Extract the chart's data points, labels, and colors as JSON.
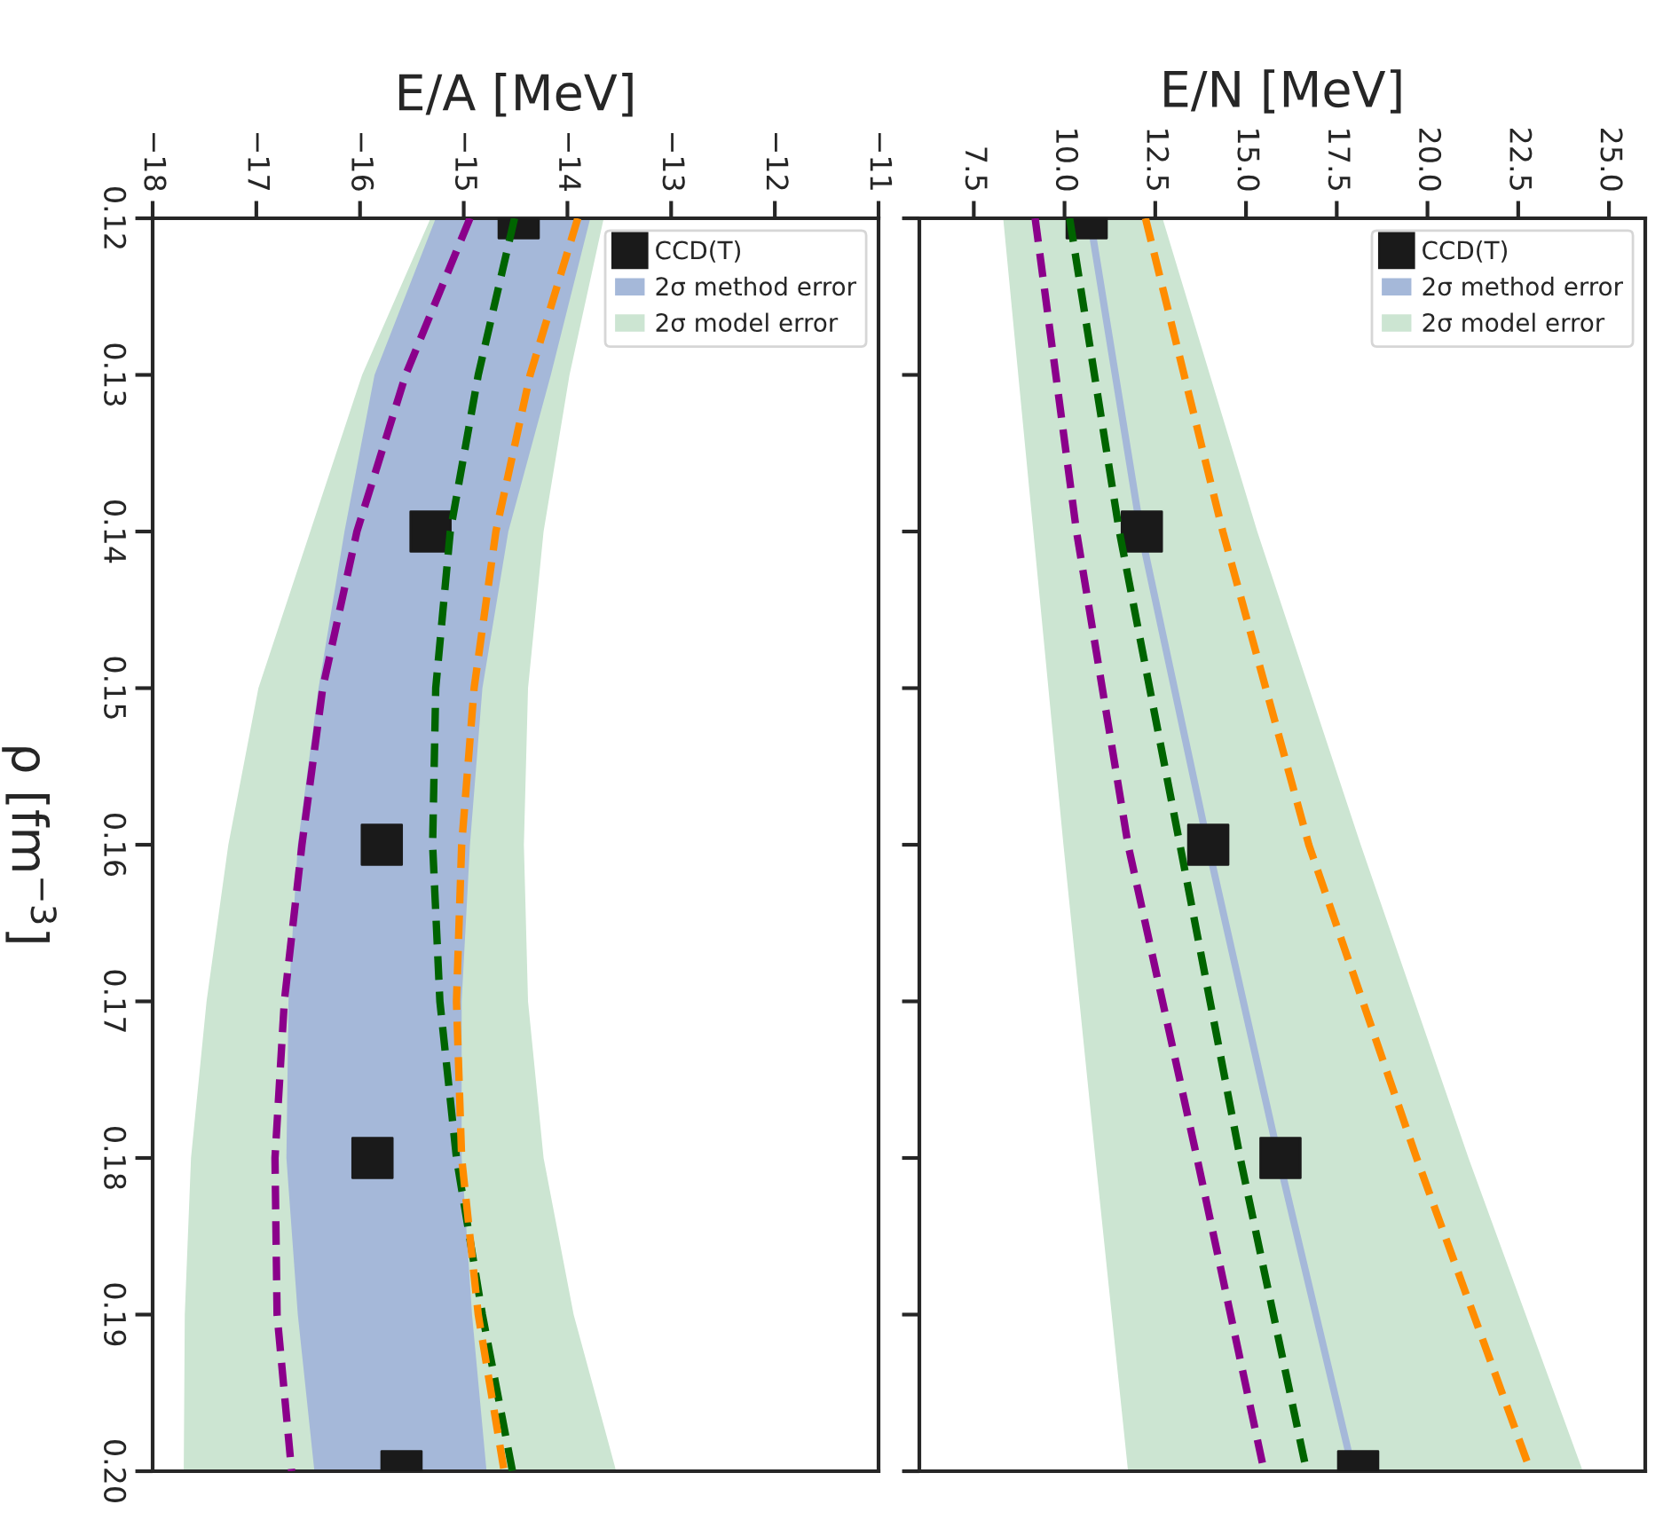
{
  "chart_data": [
    {
      "type": "line",
      "orientation": "horizontal",
      "xlabel": "E/A [MeV]",
      "ylabel": "ρ [fm$^{−3}$]",
      "ylim": [
        0.2,
        0.12
      ],
      "xlim": [
        -18,
        -11
      ],
      "yticks": [
        0.12,
        0.13,
        0.14,
        0.15,
        0.16,
        0.17,
        0.18,
        0.19,
        {
          "value": 0.2,
          "label": "0.20"
        }
      ],
      "xticks": [
        {
          "value": -18,
          "label": "−18"
        },
        {
          "value": -17,
          "label": "−17"
        },
        {
          "value": -16,
          "label": "−16"
        },
        {
          "value": -15,
          "label": "−15"
        },
        {
          "value": -14,
          "label": "−14"
        },
        {
          "value": -13,
          "label": "−13"
        },
        {
          "value": -12,
          "label": "−12"
        },
        {
          "value": -11,
          "label": "−11"
        }
      ],
      "x": [
        0.12,
        0.13,
        0.14,
        0.15,
        0.16,
        0.17,
        0.18,
        0.19,
        0.2
      ],
      "legend": "top right",
      "line_style": "dashed",
      "grid": false,
      "series": [
        {
          "name": "2σ model error",
          "type": "area",
          "color": "#cce5d2",
          "values": [
            null,
            null,
            null,
            null,
            null,
            null,
            null,
            null,
            null
          ],
          "lower": [
            -15.32,
            -15.98,
            -16.48,
            -16.98,
            -17.27,
            -17.48,
            -17.63,
            -17.69,
            -17.7
          ],
          "upper": [
            -13.65,
            -13.98,
            -14.23,
            -14.38,
            -14.42,
            -14.38,
            -14.23,
            -13.94,
            -13.53
          ]
        },
        {
          "name": "2σ method error",
          "type": "area",
          "color": "#a5b8d9",
          "values": [
            null,
            null,
            null,
            null,
            null,
            null,
            null,
            null,
            null
          ],
          "lower": [
            -15.27,
            -15.86,
            -16.15,
            -16.4,
            -16.6,
            -16.69,
            -16.71,
            -16.6,
            -16.44
          ],
          "upper": [
            -13.78,
            -14.16,
            -14.57,
            -14.82,
            -14.94,
            -15.02,
            -15.02,
            -14.92,
            -14.78
          ]
        },
        {
          "color": "#8b008b",
          "values": [
            -14.94,
            -15.56,
            -16.03,
            -16.36,
            -16.56,
            -16.73,
            -16.82,
            -16.8,
            -16.66
          ]
        },
        {
          "color": "#006400",
          "values": [
            -14.51,
            -14.86,
            -15.13,
            -15.27,
            -15.3,
            -15.23,
            -15.07,
            -14.82,
            -14.53
          ]
        },
        {
          "color": "#ff8c00",
          "values": [
            -13.9,
            -14.36,
            -14.69,
            -14.9,
            -15.02,
            -15.07,
            -15.02,
            -14.86,
            -14.61
          ]
        },
        {
          "name": "CCD(T)",
          "type": "scatter",
          "marker": "square",
          "color": "#1a1a1a",
          "x": [
            0.12,
            0.14,
            0.16,
            0.18,
            0.2
          ],
          "values": [
            -14.47,
            -15.32,
            -15.79,
            -15.88,
            -15.6
          ]
        }
      ]
    },
    {
      "type": "line",
      "orientation": "horizontal",
      "xlabel": "E/N [MeV]",
      "ylim": [
        0.2,
        0.12
      ],
      "xlim": [
        6,
        26
      ],
      "tick_labels": "x",
      "yticks": [
        0.12,
        0.13,
        0.14,
        0.15,
        0.16,
        0.17,
        0.18,
        0.19,
        0.2
      ],
      "xticks": [
        7.5,
        {
          "value": 10,
          "label": "10.0"
        },
        12.5,
        {
          "value": 15,
          "label": "15.0"
        },
        17.5,
        {
          "value": 20,
          "label": "20.0"
        },
        22.5,
        {
          "value": 25,
          "label": "25.0"
        }
      ],
      "x": [
        0.12,
        0.14,
        0.16,
        0.18,
        0.2
      ],
      "legend": "top right",
      "line_style": "dashed",
      "grid": false,
      "series": [
        {
          "name": "2σ model error",
          "type": "area",
          "color": "#cce5d2",
          "values": [
            null,
            null,
            null,
            null,
            null
          ],
          "lower": [
            8.31,
            9.14,
            9.97,
            10.85,
            11.75
          ],
          "upper": [
            12.7,
            15.31,
            18.16,
            21.13,
            24.28
          ]
        },
        {
          "name": "2σ method error",
          "type": "area",
          "color": "#a5b8d9",
          "values": [
            null,
            null,
            null,
            null,
            null
          ],
          "lower": [
            10.6,
            12.0,
            13.85,
            15.8,
            17.85
          ],
          "upper": [
            10.8,
            12.2,
            14.05,
            16.0,
            18.05
          ]
        },
        {
          "color": "#8b008b",
          "values": [
            9.19,
            10.33,
            11.75,
            13.65,
            15.5
          ]
        },
        {
          "color": "#006400",
          "values": [
            10.14,
            11.51,
            13.18,
            14.84,
            16.67
          ]
        },
        {
          "color": "#ff8c00",
          "values": [
            12.23,
            14.36,
            16.73,
            19.7,
            22.84
          ]
        },
        {
          "name": "CCD(T)",
          "type": "scatter",
          "marker": "square",
          "color": "#1a1a1a",
          "values": [
            10.61,
            12.13,
            13.96,
            15.95,
            18.09
          ]
        }
      ]
    }
  ]
}
